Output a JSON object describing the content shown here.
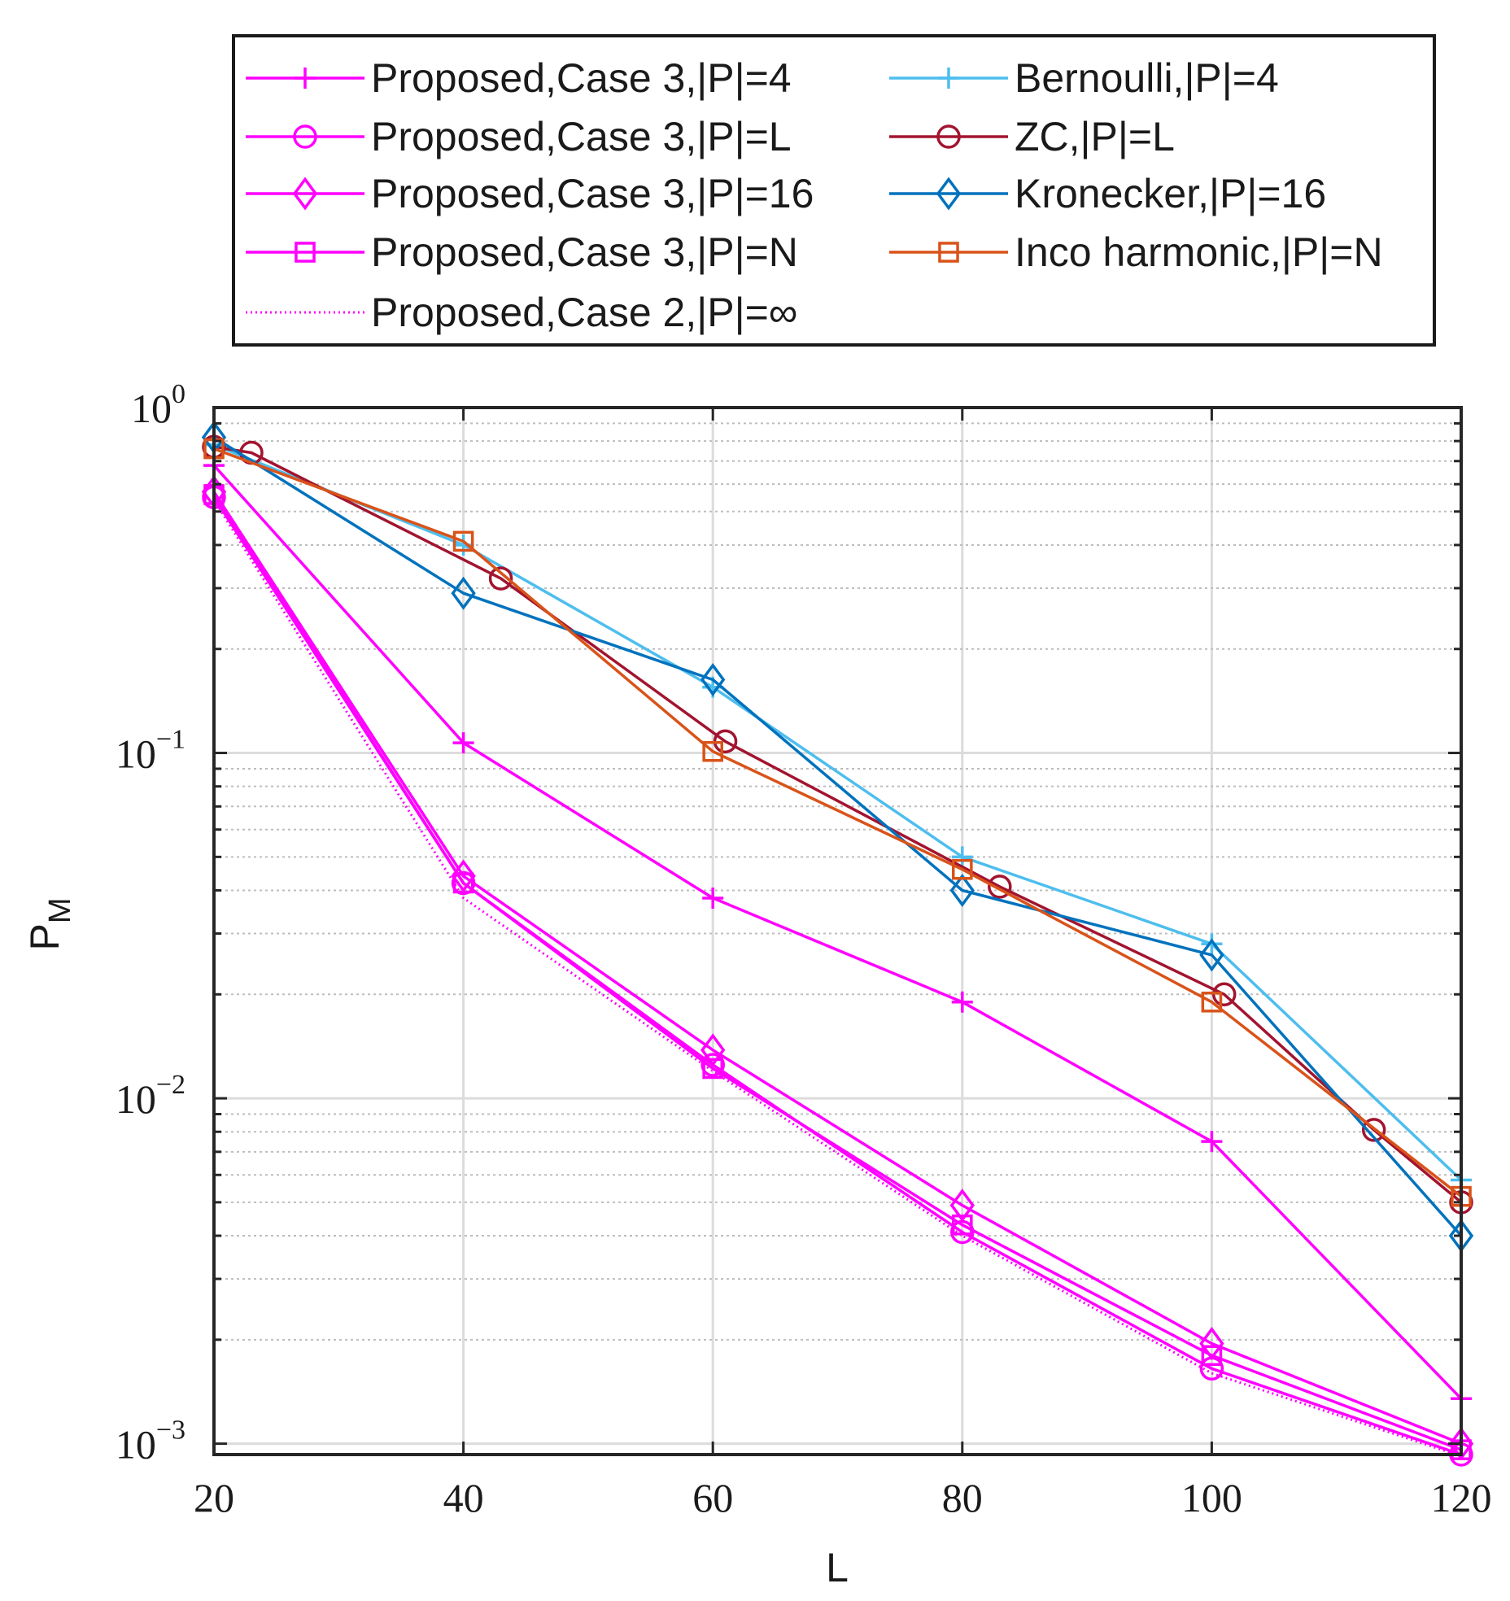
{
  "chart_data": {
    "type": "line",
    "title": "",
    "xlabel": "L",
    "ylabel": "P_M",
    "ylabel_main": "P",
    "ylabel_sub": "M",
    "xscale": "linear",
    "yscale": "log",
    "xlim": [
      20,
      120
    ],
    "ylim": [
      0.00093,
      1.0
    ],
    "grid": true,
    "legend_placement": "top, outside, two columns",
    "xticks": [
      {
        "value": 20,
        "label": "20"
      },
      {
        "value": 40,
        "label": "40"
      },
      {
        "value": 60,
        "label": "60"
      },
      {
        "value": 80,
        "label": "80"
      },
      {
        "value": 100,
        "label": "100"
      },
      {
        "value": 120,
        "label": "120"
      }
    ],
    "yticks": [
      {
        "value": 1.0,
        "base": "10",
        "exp": "0"
      },
      {
        "value": 0.1,
        "base": "10",
        "exp": "−1"
      },
      {
        "value": 0.01,
        "base": "10",
        "exp": "−2"
      },
      {
        "value": 0.001,
        "base": "10",
        "exp": "−3"
      }
    ],
    "series": [
      {
        "name": "Proposed,Case 3,|P|=4",
        "color": "#ff00ff",
        "marker": "plus",
        "line": "solid",
        "x": [
          20,
          40,
          60,
          80,
          100,
          120
        ],
        "y": [
          0.68,
          0.107,
          0.038,
          0.019,
          0.0075,
          0.00135
        ]
      },
      {
        "name": "Proposed,Case 3,|P|=L",
        "color": "#ff00ff",
        "marker": "circle",
        "line": "solid",
        "x": [
          20,
          40,
          60,
          80,
          100,
          120
        ],
        "y": [
          0.55,
          0.042,
          0.0125,
          0.0041,
          0.00165,
          0.00093
        ]
      },
      {
        "name": "Proposed,Case 3,|P|=16",
        "color": "#ff00ff",
        "marker": "diamond",
        "line": "solid",
        "x": [
          20,
          40,
          60,
          80,
          100,
          120
        ],
        "y": [
          0.57,
          0.044,
          0.0138,
          0.0049,
          0.00195,
          0.001
        ]
      },
      {
        "name": "Proposed,Case 3,|P|=N",
        "color": "#ff00ff",
        "marker": "square",
        "line": "solid",
        "x": [
          20,
          40,
          60,
          80,
          100,
          120
        ],
        "y": [
          0.56,
          0.042,
          0.0122,
          0.0043,
          0.0018,
          0.00096
        ]
      },
      {
        "name": "Proposed,Case 2,|P|=∞",
        "color": "#ff00ff",
        "marker": "none",
        "line": "dotted",
        "x": [
          20,
          40,
          60,
          80,
          100,
          120
        ],
        "y": [
          0.54,
          0.038,
          0.012,
          0.004,
          0.0016,
          0.00092
        ]
      },
      {
        "name": "Bernoulli,|P|=4",
        "color": "#4dbeee",
        "marker": "plus",
        "line": "solid",
        "x": [
          20,
          40,
          60,
          80,
          100,
          120
        ],
        "y": [
          0.78,
          0.4,
          0.155,
          0.05,
          0.028,
          0.0058
        ]
      },
      {
        "name": "ZC,|P|=L",
        "color": "#a2142f",
        "marker": "circle",
        "line": "solid",
        "x": [
          20,
          23,
          43,
          61,
          83,
          101,
          113,
          120
        ],
        "y": [
          0.77,
          0.74,
          0.32,
          0.108,
          0.041,
          0.02,
          0.0081,
          0.005
        ]
      },
      {
        "name": "Kronecker,|P|=16",
        "color": "#0072bd",
        "marker": "diamond",
        "line": "solid",
        "x": [
          20,
          40,
          60,
          80,
          100,
          120
        ],
        "y": [
          0.82,
          0.29,
          0.163,
          0.04,
          0.026,
          0.004
        ]
      },
      {
        "name": "Inco harmonic,|P|=N",
        "color": "#d95319",
        "marker": "square",
        "line": "solid",
        "x": [
          20,
          40,
          60,
          80,
          100,
          120
        ],
        "y": [
          0.76,
          0.41,
          0.101,
          0.046,
          0.019,
          0.0052
        ]
      }
    ]
  }
}
